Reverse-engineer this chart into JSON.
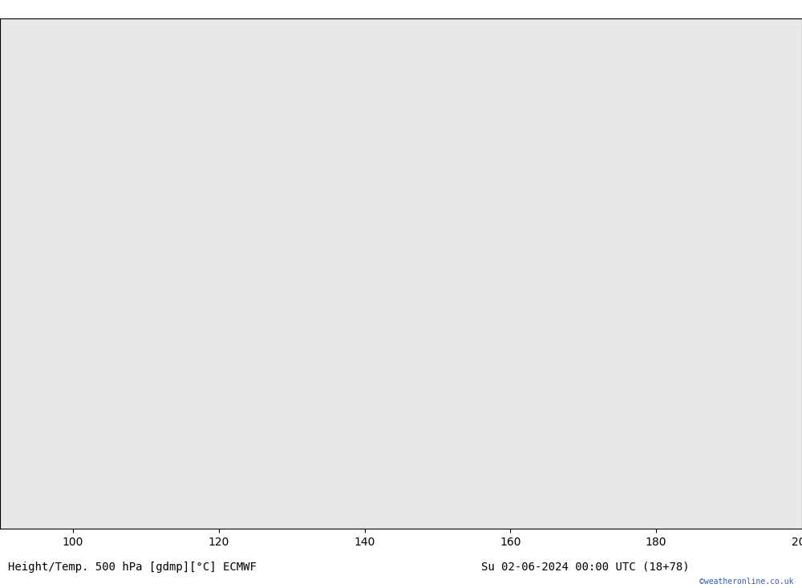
{
  "title_left": "Height/Temp. 500 hPa [gdmp][°C] ECMWF",
  "title_right": "Su 02-06-2024 00:00 UTC (18+78)",
  "credit": "©weatheronline.co.uk",
  "background_color": "#d8d8d8",
  "land_color": "#c8e6c8",
  "sea_color": "#e8e8e8",
  "contour_color": "#000000",
  "temp_colors": {
    "pos5": "#cc0000",
    "neg5": "#cc0000",
    "neg10": "#e08020",
    "neg15": "#e08020",
    "neg20": "#c8b400",
    "neg25": "#00b0b0"
  },
  "lon_min": 90,
  "lon_max": 200,
  "lat_min": -55,
  "lat_max": 15,
  "figsize": [
    10.0,
    7.33
  ],
  "dpi": 100,
  "label_fontsize": 8,
  "footer_fontsize": 10
}
